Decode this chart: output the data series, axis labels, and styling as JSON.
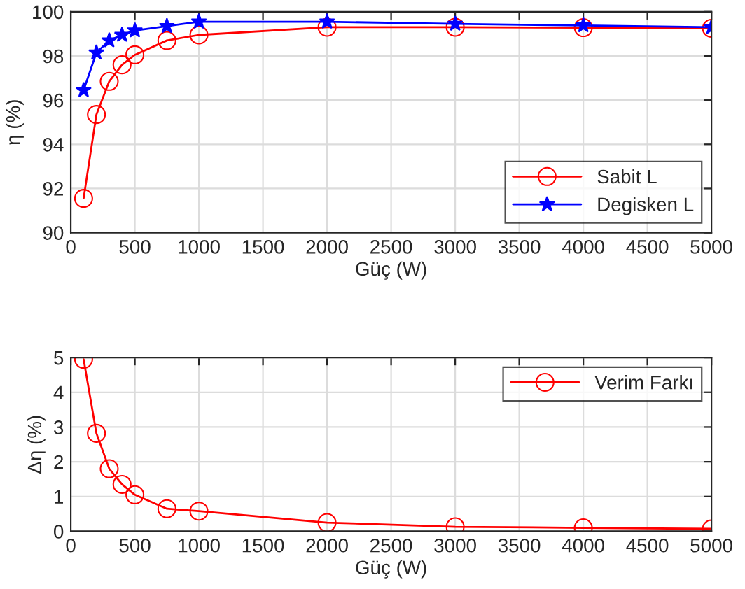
{
  "chart_data": [
    {
      "type": "line",
      "x": [
        100,
        200,
        300,
        400,
        500,
        750,
        1000,
        2000,
        3000,
        4000,
        5000
      ],
      "xlabel": "Güç (W)",
      "ylabel": "η (%)",
      "xlim": [
        0,
        5000
      ],
      "xticks": [
        0,
        500,
        1000,
        1500,
        2000,
        2500,
        3000,
        3500,
        4000,
        4500,
        5000
      ],
      "ylim": [
        90,
        100
      ],
      "yticks": [
        90,
        92,
        94,
        96,
        98,
        100
      ],
      "grid": true,
      "legend": "bottom right",
      "series": [
        {
          "name": "Sabit L",
          "color": "#ff0000",
          "marker": "circle",
          "values": [
            91.55,
            95.35,
            96.85,
            97.6,
            98.05,
            98.7,
            98.95,
            99.3,
            99.3,
            99.28,
            99.25
          ]
        },
        {
          "name": "Degisken L",
          "color": "#0000ff",
          "marker": "star",
          "values": [
            96.45,
            98.15,
            98.7,
            98.95,
            99.15,
            99.35,
            99.55,
            99.55,
            99.45,
            99.38,
            99.3
          ]
        }
      ]
    },
    {
      "type": "line",
      "x": [
        100,
        200,
        300,
        400,
        500,
        750,
        1000,
        2000,
        3000,
        4000,
        5000
      ],
      "xlabel": "Güç (W)",
      "ylabel": "Δη (%)",
      "xlim": [
        0,
        5000
      ],
      "xticks": [
        0,
        500,
        1000,
        1500,
        2000,
        2500,
        3000,
        3500,
        4000,
        4500,
        5000
      ],
      "ylim": [
        0,
        5
      ],
      "yticks": [
        0,
        1,
        2,
        3,
        4,
        5
      ],
      "grid": true,
      "legend": "top right",
      "series": [
        {
          "name": "Verim Farkı",
          "color": "#ff0000",
          "marker": "circle",
          "values": [
            4.95,
            2.82,
            1.8,
            1.35,
            1.05,
            0.65,
            0.58,
            0.25,
            0.13,
            0.1,
            0.07
          ]
        }
      ]
    }
  ]
}
